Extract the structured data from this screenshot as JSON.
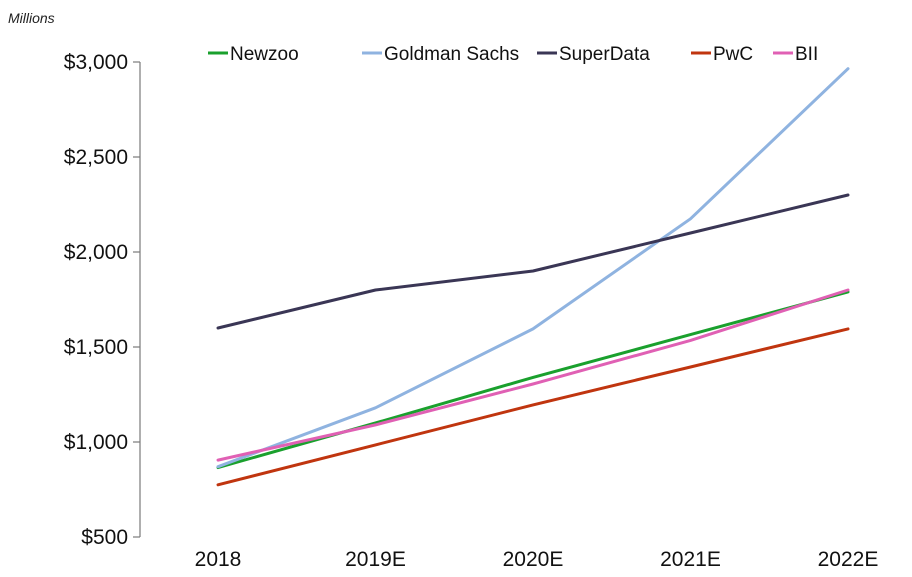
{
  "chart_data": {
    "type": "line",
    "unit_label": "Millions",
    "categories": [
      "2018",
      "2019E",
      "2020E",
      "2021E",
      "2022E"
    ],
    "ylim": [
      500,
      3000
    ],
    "yticks": [
      500,
      1000,
      1500,
      2000,
      2500,
      3000
    ],
    "ytick_labels": [
      "$500",
      "$1,000",
      "$1,500",
      "$2,000",
      "$2,500",
      "$3,000"
    ],
    "grid": false,
    "legend_position": "top",
    "series": [
      {
        "name": "Newzoo",
        "color": "#1aa02d",
        "values": [
          865,
          1100,
          1340,
          1565,
          1790
        ]
      },
      {
        "name": "Goldman Sachs",
        "color": "#8fb3e0",
        "values": [
          870,
          1180,
          1595,
          2175,
          2965
        ]
      },
      {
        "name": "SuperData",
        "color": "#3a3655",
        "values": [
          1600,
          1800,
          1900,
          2100,
          2300
        ]
      },
      {
        "name": "PwC",
        "color": "#c0350f",
        "values": [
          775,
          985,
          1195,
          1395,
          1595
        ]
      },
      {
        "name": "BII",
        "color": "#e060b4",
        "values": [
          905,
          1090,
          1305,
          1535,
          1800
        ]
      }
    ]
  }
}
